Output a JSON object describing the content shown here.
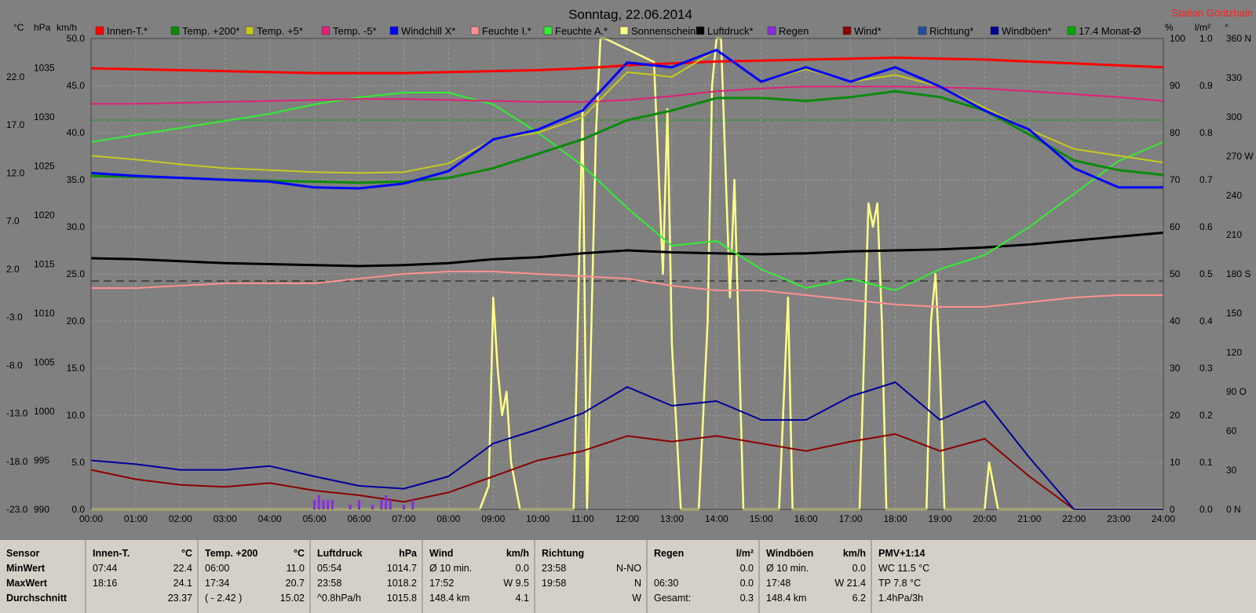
{
  "title": "Sonntag, 22.06.2014",
  "station": "Station Göritzhain",
  "colors": {
    "bg": "#808080",
    "grid": "#9a9a9a",
    "innen": "#ff0000",
    "temp200": "#0b8a0b",
    "temp5": "#c8c820",
    "tempMinus5": "#e0207a",
    "windchill": "#0000ff",
    "feuchteI": "#ff9090",
    "feuchteA": "#33ee33",
    "sonne": "#ffff88",
    "luftdruck": "#000000",
    "regen": "#8a2be2",
    "wind": "#8b0000",
    "richtung": "#1f4fa0",
    "boeen": "#000099",
    "monat": "#00aa00"
  },
  "legend": [
    {
      "label": "Innen-T.*",
      "color": "#ff0000"
    },
    {
      "label": "Temp. +200*",
      "color": "#0b8a0b"
    },
    {
      "label": "Temp. +5*",
      "color": "#c8c820"
    },
    {
      "label": "Temp. -5*",
      "color": "#e0207a"
    },
    {
      "label": "Windchill X*",
      "color": "#0000ff"
    },
    {
      "label": "Feuchte I.*",
      "color": "#ff9090"
    },
    {
      "label": "Feuchte A.*",
      "color": "#33ee33"
    },
    {
      "label": "Sonnenschein",
      "color": "#ffff88"
    },
    {
      "label": "Luftdruck*",
      "color": "#000000"
    },
    {
      "label": "Regen",
      "color": "#8a2be2"
    },
    {
      "label": "Wind*",
      "color": "#8b0000"
    },
    {
      "label": "Richtung*",
      "color": "#1f4fa0"
    },
    {
      "label": "Windböen*",
      "color": "#000099"
    },
    {
      "label": "17.4 Monat-Ø",
      "color": "#00aa00"
    }
  ],
  "chart_data": {
    "type": "line",
    "title": "Sonntag, 22.06.2014",
    "x_ticks": [
      "00:00",
      "01:00",
      "02:00",
      "03:00",
      "04:00",
      "05:00",
      "06:00",
      "07:00",
      "08:00",
      "09:00",
      "10:00",
      "11:00",
      "12:00",
      "13:00",
      "14:00",
      "15:00",
      "16:00",
      "17:00",
      "18:00",
      "19:00",
      "20:00",
      "21:00",
      "22:00",
      "23:00",
      "24:00"
    ],
    "xlim": [
      0,
      24
    ],
    "axes": {
      "temp_c": {
        "label": "°C",
        "ticks": [
          "22.0",
          "17.0",
          "12.0",
          "7.0",
          "2.0",
          "-3.0",
          "-8.0",
          "-13.0",
          "-18.0",
          "-23.0"
        ],
        "range": [
          -23.0,
          26.0
        ]
      },
      "pressure_hpa": {
        "label": "hPa",
        "ticks": [
          "1035",
          "1030",
          "1025",
          "1020",
          "1015",
          "1010",
          "1005",
          "1000",
          "995",
          "990"
        ],
        "range": [
          990,
          1038
        ]
      },
      "wind_kmh": {
        "label": "km/h",
        "ticks": [
          "50.0",
          "45.0",
          "40.0",
          "35.0",
          "30.0",
          "25.0",
          "20.0",
          "15.0",
          "10.0",
          "5.0",
          "0.0"
        ],
        "range": [
          0,
          50
        ]
      },
      "humidity_pct": {
        "label": "%",
        "ticks": [
          "100",
          "90",
          "80",
          "70",
          "60",
          "50",
          "40",
          "30",
          "20",
          "10",
          "0"
        ],
        "range": [
          0,
          100
        ]
      },
      "rain_lm2": {
        "label": "l/m²",
        "ticks": [
          "1.0",
          "0.9",
          "0.8",
          "0.7",
          "0.6",
          "0.5",
          "0.4",
          "0.3",
          "0.2",
          "0.1",
          "0.0"
        ],
        "range": [
          0,
          1
        ]
      },
      "direction_deg": {
        "label": "°",
        "ticks": [
          "360 N",
          "330",
          "300",
          "270 W",
          "240",
          "210",
          "180 S",
          "150",
          "120",
          "90 O",
          "60",
          "30",
          "0 N"
        ],
        "range": [
          0,
          360
        ]
      }
    },
    "series": [
      {
        "name": "Innen-T.*",
        "axis": "temp_c",
        "x": [
          0,
          1,
          2,
          3,
          4,
          5,
          6,
          7,
          8,
          9,
          10,
          11,
          12,
          13,
          14,
          15,
          16,
          17,
          18,
          19,
          20,
          21,
          22,
          23,
          24
        ],
        "y": [
          22.9,
          22.8,
          22.7,
          22.6,
          22.5,
          22.4,
          22.4,
          22.4,
          22.5,
          22.6,
          22.7,
          22.9,
          23.2,
          23.4,
          23.6,
          23.7,
          23.8,
          23.9,
          24.0,
          23.9,
          23.8,
          23.6,
          23.4,
          23.2,
          23.0
        ]
      },
      {
        "name": "Temp. +200*",
        "axis": "temp_c",
        "x": [
          0,
          1,
          2,
          3,
          4,
          5,
          6,
          7,
          8,
          9,
          10,
          11,
          12,
          13,
          14,
          15,
          16,
          17,
          18,
          19,
          20,
          21,
          22,
          23,
          24
        ],
        "y": [
          11.7,
          11.6,
          11.5,
          11.3,
          11.2,
          11.1,
          11.0,
          11.1,
          11.5,
          12.5,
          14.0,
          15.5,
          17.5,
          18.5,
          19.8,
          19.8,
          19.5,
          19.9,
          20.5,
          19.9,
          18.5,
          16.0,
          13.3,
          12.3,
          11.8
        ]
      },
      {
        "name": "Temp. +5*",
        "axis": "temp_c",
        "x": [
          0,
          1,
          2,
          3,
          4,
          5,
          6,
          7,
          8,
          9,
          10,
          11,
          12,
          13,
          14,
          15,
          16,
          17,
          18,
          19,
          20,
          21,
          22,
          23,
          24
        ],
        "y": [
          13.8,
          13.4,
          12.9,
          12.5,
          12.3,
          12.1,
          12.0,
          12.1,
          13.0,
          15.5,
          16.2,
          17.8,
          22.5,
          22.0,
          24.8,
          21.5,
          22.8,
          21.5,
          22.2,
          21.0,
          18.8,
          16.5,
          14.5,
          13.8,
          13.1
        ]
      },
      {
        "name": "Temp. -5*",
        "axis": "temp_c",
        "x": [
          0,
          1,
          2,
          3,
          4,
          5,
          6,
          7,
          8,
          9,
          10,
          11,
          12,
          13,
          14,
          15,
          16,
          17,
          18,
          19,
          20,
          21,
          22,
          23,
          24
        ],
        "y": [
          19.2,
          19.2,
          19.3,
          19.4,
          19.5,
          19.6,
          19.7,
          19.7,
          19.6,
          19.5,
          19.4,
          19.4,
          19.6,
          20.0,
          20.5,
          20.8,
          21.0,
          21.0,
          21.0,
          20.9,
          20.8,
          20.5,
          20.2,
          19.9,
          19.5
        ]
      },
      {
        "name": "Windchill X*",
        "axis": "temp_c",
        "x": [
          0,
          1,
          2,
          3,
          4,
          5,
          6,
          7,
          8,
          9,
          10,
          11,
          12,
          13,
          14,
          15,
          16,
          17,
          18,
          19,
          20,
          21,
          22,
          23,
          24
        ],
        "y": [
          12.0,
          11.7,
          11.5,
          11.3,
          11.1,
          10.5,
          10.4,
          10.9,
          12.2,
          15.5,
          16.5,
          18.5,
          23.5,
          23.0,
          24.8,
          21.5,
          23.0,
          21.5,
          23.0,
          21.0,
          18.5,
          16.5,
          12.5,
          10.5,
          10.5
        ]
      },
      {
        "name": "Feuchte I.*",
        "axis": "humidity_pct",
        "x": [
          0,
          1,
          2,
          3,
          4,
          5,
          6,
          7,
          8,
          9,
          10,
          11,
          12,
          13,
          14,
          15,
          16,
          17,
          18,
          19,
          20,
          21,
          22,
          23,
          24
        ],
        "y": [
          47.0,
          47.0,
          47.5,
          48.0,
          48.0,
          48.0,
          49.0,
          50.0,
          50.5,
          50.5,
          50.0,
          49.5,
          49.0,
          47.5,
          46.5,
          46.5,
          45.5,
          44.5,
          43.5,
          43.0,
          43.0,
          44.0,
          45.0,
          45.5,
          45.5
        ]
      },
      {
        "name": "Feuchte A.*",
        "axis": "humidity_pct",
        "x": [
          0,
          1,
          2,
          3,
          4,
          5,
          6,
          7,
          8,
          9,
          10,
          11,
          12,
          13,
          14,
          15,
          16,
          17,
          18,
          19,
          20,
          21,
          22,
          23,
          24
        ],
        "y": [
          78.0,
          79.5,
          81.0,
          82.5,
          84.0,
          86.0,
          87.5,
          88.5,
          88.5,
          86.0,
          80.0,
          73.0,
          64.0,
          56.0,
          57.0,
          51.0,
          47.0,
          49.0,
          46.5,
          51.0,
          54.0,
          60.0,
          67.0,
          74.0,
          78.0
        ]
      },
      {
        "name": "Luftdruck*",
        "axis": "pressure_hpa",
        "x": [
          0,
          1,
          2,
          3,
          4,
          5,
          6,
          7,
          8,
          9,
          10,
          11,
          12,
          13,
          14,
          15,
          16,
          17,
          18,
          19,
          20,
          21,
          22,
          23,
          24
        ],
        "y": [
          1015.6,
          1015.5,
          1015.3,
          1015.1,
          1015.0,
          1014.9,
          1014.8,
          1014.9,
          1015.1,
          1015.5,
          1015.7,
          1016.1,
          1016.4,
          1016.2,
          1016.1,
          1016.0,
          1016.1,
          1016.3,
          1016.4,
          1016.5,
          1016.7,
          1017.0,
          1017.4,
          1017.8,
          1018.2
        ]
      },
      {
        "name": "Sonnenschein",
        "axis": "humidity_pct",
        "x": [
          0,
          8.7,
          8.9,
          9.0,
          9.1,
          9.2,
          9.3,
          9.4,
          9.6,
          10.8,
          11.0,
          11.1,
          11.3,
          11.4,
          11.5,
          12.6,
          12.8,
          12.9,
          13.0,
          13.2,
          13.6,
          13.8,
          13.9,
          14.0,
          14.1,
          14.3,
          14.4,
          14.6,
          15.4,
          15.6,
          15.7,
          17.2,
          17.4,
          17.5,
          17.6,
          17.7,
          17.8,
          18.7,
          18.8,
          18.9,
          19.0,
          19.1,
          20.0,
          20.1,
          20.2,
          20.3,
          24
        ],
        "y": [
          0,
          0,
          5,
          45,
          30,
          20,
          25,
          10,
          0,
          0,
          85,
          0,
          80,
          100,
          100,
          95,
          50,
          85,
          35,
          0,
          0,
          40,
          90,
          100,
          100,
          45,
          70,
          0,
          0,
          45,
          0,
          0,
          65,
          60,
          65,
          40,
          0,
          0,
          40,
          50,
          30,
          0,
          0,
          10,
          5,
          0,
          0
        ]
      },
      {
        "name": "Regen",
        "axis": "rain_lm2",
        "x": [
          5.0,
          5.1,
          5.2,
          5.3,
          5.4,
          5.8,
          6.0,
          6.3,
          6.5,
          6.6,
          6.7,
          7.0,
          7.2
        ],
        "y": [
          0.02,
          0.03,
          0.02,
          0.02,
          0.02,
          0.01,
          0.02,
          0.01,
          0.02,
          0.03,
          0.02,
          0.01,
          0.02
        ]
      },
      {
        "name": "Wind*",
        "axis": "wind_kmh",
        "x": [
          0,
          1,
          2,
          3,
          4,
          5,
          6,
          7,
          8,
          9,
          10,
          11,
          12,
          13,
          14,
          15,
          16,
          17,
          18,
          19,
          20,
          21,
          22,
          23,
          24
        ],
        "y": [
          4.2,
          3.2,
          2.6,
          2.4,
          2.8,
          2.0,
          1.5,
          0.8,
          1.8,
          3.5,
          5.2,
          6.2,
          7.8,
          7.2,
          7.8,
          7.0,
          6.2,
          7.2,
          8.0,
          6.2,
          7.5,
          3.5,
          0.0,
          0.0,
          0.0
        ]
      },
      {
        "name": "Windböen*",
        "axis": "wind_kmh",
        "x": [
          0,
          1,
          2,
          3,
          4,
          5,
          6,
          7,
          8,
          9,
          10,
          11,
          12,
          13,
          14,
          15,
          16,
          17,
          18,
          19,
          20,
          21,
          22,
          23,
          24
        ],
        "y": [
          5.2,
          4.8,
          4.2,
          4.2,
          4.6,
          3.5,
          2.5,
          2.2,
          3.5,
          7.0,
          8.5,
          10.2,
          13.0,
          11.0,
          11.5,
          9.5,
          9.5,
          12.0,
          13.5,
          9.5,
          11.5,
          5.5,
          0.0,
          0.0,
          0.0
        ]
      }
    ]
  },
  "stats": {
    "row_labels": [
      "Sensor",
      "MinWert",
      "MaxWert",
      "Durchschnitt"
    ],
    "columns": [
      {
        "name": "Innen-T.",
        "unit": "°C",
        "rows": [
          [
            "07:44",
            "22.4"
          ],
          [
            "18:16",
            "24.1"
          ],
          [
            "",
            "23.37"
          ]
        ]
      },
      {
        "name": "Temp. +200",
        "unit": "°C",
        "rows": [
          [
            "06:00",
            "11.0"
          ],
          [
            "17:34",
            "20.7"
          ],
          [
            "( - 2.42 )",
            "15.02"
          ]
        ]
      },
      {
        "name": "Luftdruck",
        "unit": "hPa",
        "rows": [
          [
            "05:54",
            "1014.7"
          ],
          [
            "23:58",
            "1018.2"
          ],
          [
            "^0.8hPa/h",
            "1015.8"
          ]
        ]
      },
      {
        "name": "Wind",
        "unit": "km/h",
        "rows": [
          [
            "Ø 10 min.",
            "0.0"
          ],
          [
            "17:52",
            "W 9.5"
          ],
          [
            "148.4 km",
            "4.1"
          ]
        ]
      },
      {
        "name": "Richtung",
        "unit": "",
        "rows": [
          [
            "23:58",
            "N-NO"
          ],
          [
            "19:58",
            "N"
          ],
          [
            "",
            "W"
          ]
        ]
      },
      {
        "name": "Regen",
        "unit": "l/m²",
        "rows": [
          [
            "",
            "0.0"
          ],
          [
            "06:30",
            "0.0"
          ],
          [
            "Gesamt:",
            "0.3"
          ]
        ]
      },
      {
        "name": "Windböen",
        "unit": "km/h",
        "rows": [
          [
            "Ø 10 min.",
            "0.0"
          ],
          [
            "17:48",
            "W 21.4"
          ],
          [
            "148.4 km",
            "6.2"
          ]
        ]
      },
      {
        "name": "PMV+1:14",
        "unit": "",
        "rows": [
          [
            "WC 11.5 °C",
            ""
          ],
          [
            "TP 7.8 °C",
            ""
          ],
          [
            "1.4hPa/3h",
            ""
          ]
        ]
      }
    ]
  }
}
